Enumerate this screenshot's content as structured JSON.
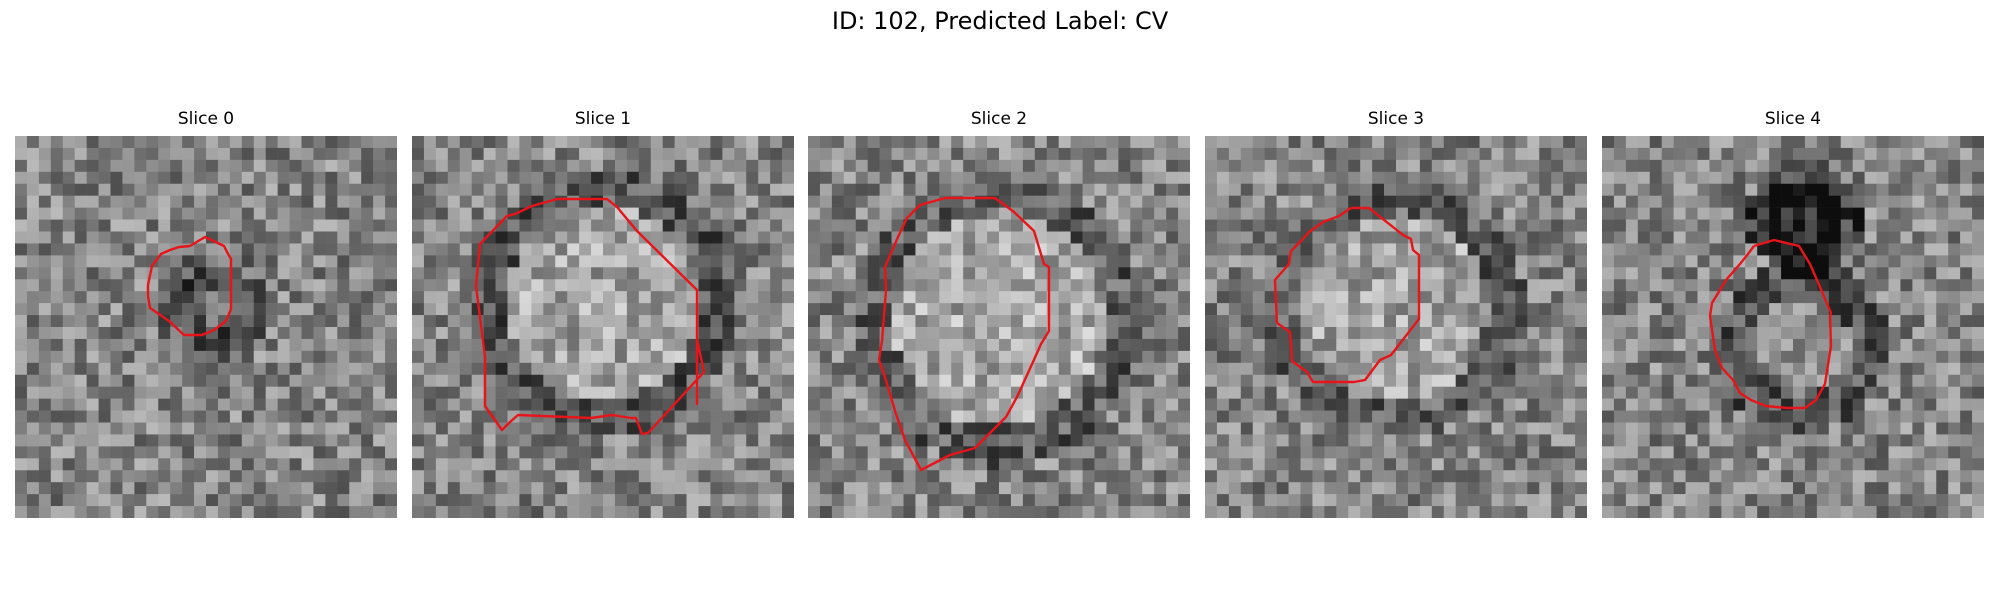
{
  "figure": {
    "title": "ID: 102, Predicted Label: CV"
  },
  "panels": [
    {
      "title": "Slice 0"
    },
    {
      "title": "Slice 1"
    },
    {
      "title": "Slice 2"
    },
    {
      "title": "Slice 3"
    },
    {
      "title": "Slice 4"
    }
  ],
  "colors": {
    "contour": "#e8141a",
    "background": "#ffffff"
  }
}
